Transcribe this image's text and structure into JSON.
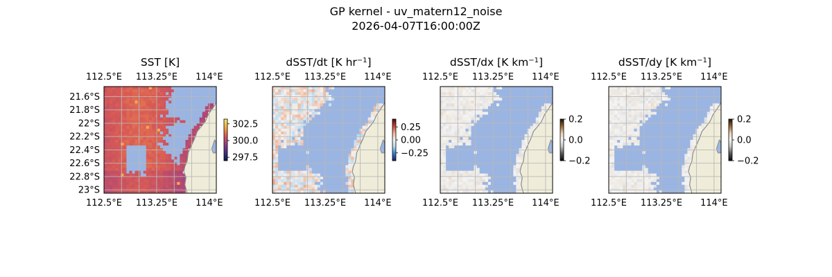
{
  "figure": {
    "title_line1": "GP kernel - uv_matern12_noise",
    "title_line2": "2026-04-07T16:00:00Z"
  },
  "chart_data": [
    {
      "type": "heatmap",
      "title": "SST [K]",
      "title_sup": "",
      "title_tail": "",
      "map_extent": {
        "lon": [
          112.5,
          114.1
        ],
        "lat": [
          -23.05,
          -21.45
        ]
      },
      "x_ticks": [
        112.5,
        113.25,
        114.0
      ],
      "x_tick_labels": [
        "112.5°E",
        "113.25°E",
        "114°E"
      ],
      "y_ticks": [
        -21.6,
        -21.8,
        -22.0,
        -22.2,
        -22.4,
        -22.6,
        -22.8,
        -23.0
      ],
      "y_tick_labels": [
        "21.6°S",
        "21.8°S",
        "22°S",
        "22.2°S",
        "22.4°S",
        "22.6°S",
        "22.8°S",
        "23°S"
      ],
      "colorbar": {
        "ticks": [
          297.5,
          300.0,
          302.5
        ],
        "tick_labels": [
          "297.5",
          "300.0",
          "302.5"
        ],
        "range": [
          297.0,
          303.2
        ],
        "colormap": "thermal"
      }
    },
    {
      "type": "heatmap",
      "title": "dSST/dt [K hr",
      "title_sup": "−1",
      "title_tail": "]",
      "map_extent": {
        "lon": [
          112.5,
          114.1
        ],
        "lat": [
          -23.05,
          -21.45
        ]
      },
      "x_ticks": [
        112.5,
        113.25,
        114.0
      ],
      "x_tick_labels": [
        "112.5°E",
        "113.25°E",
        "114°E"
      ],
      "colorbar": {
        "ticks": [
          0.25,
          0.0,
          -0.25
        ],
        "tick_labels": [
          "0.25",
          "0.00",
          "−0.25"
        ],
        "range": [
          -0.4,
          0.4
        ],
        "colormap": "balance"
      }
    },
    {
      "type": "heatmap",
      "title": "dSST/dx [K km",
      "title_sup": "−1",
      "title_tail": "]",
      "map_extent": {
        "lon": [
          112.5,
          114.1
        ],
        "lat": [
          -23.05,
          -21.45
        ]
      },
      "x_ticks": [
        112.5,
        113.25,
        114.0
      ],
      "x_tick_labels": [
        "112.5°E",
        "113.25°E",
        "114°E"
      ],
      "colorbar": {
        "ticks": [
          0.2,
          0.0,
          -0.2
        ],
        "tick_labels": [
          "0.2",
          "0.0",
          "−0.2"
        ],
        "range": [
          -0.2,
          0.2
        ],
        "colormap": "grey-diverging"
      }
    },
    {
      "type": "heatmap",
      "title": "dSST/dy [K km",
      "title_sup": "−1",
      "title_tail": "]",
      "map_extent": {
        "lon": [
          112.5,
          114.1
        ],
        "lat": [
          -23.05,
          -21.45
        ]
      },
      "x_ticks": [
        112.5,
        113.25,
        114.0
      ],
      "x_tick_labels": [
        "112.5°E",
        "113.25°E",
        "114°E"
      ],
      "colorbar": {
        "ticks": [
          0.2,
          0.0,
          -0.2
        ],
        "tick_labels": [
          "0.2",
          "0.0",
          "−0.2"
        ],
        "range": [
          -0.2,
          0.2
        ],
        "colormap": "grey-diverging"
      }
    }
  ],
  "colors": {
    "ocean_mask": "#9bb5e2",
    "land": "#efedd9",
    "coastline": "#8a8a8a",
    "gridline": "#b8b8b8"
  }
}
